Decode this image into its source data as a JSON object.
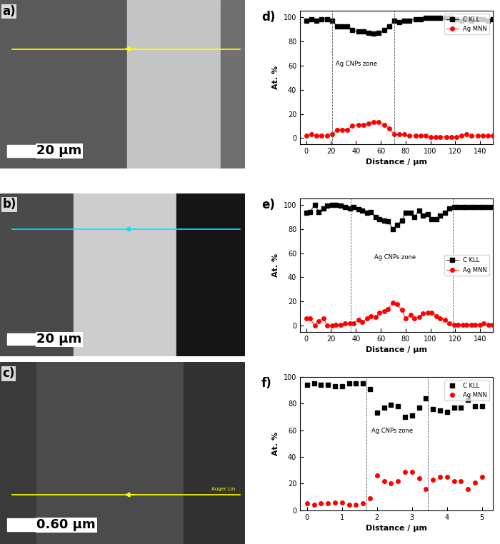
{
  "images": [
    {
      "label": "a)",
      "scale_bar": "20 µm",
      "line_color": "#ffff00",
      "line_text": null
    },
    {
      "label": "b)",
      "scale_bar": "20 µm",
      "line_color": "#00e5ff",
      "line_text": null
    },
    {
      "label": "c)",
      "scale_bar": "0.60 µm",
      "line_color": "#ffff00",
      "line_text": "Auger Lin"
    }
  ],
  "chart_data": [
    {
      "type": "scatter",
      "panel_label": "d)",
      "xlabel": "Distance / µm",
      "ylabel": "At. %",
      "xlim": [
        -5,
        150
      ],
      "xticks": [
        0,
        20,
        40,
        60,
        80,
        100,
        120,
        140
      ],
      "ylim": [
        -5,
        105
      ],
      "yticks": [
        0,
        20,
        40,
        60,
        80,
        100
      ],
      "legend": "upper right",
      "zone_bounds": [
        21,
        71
      ],
      "annotations": [
        {
          "text": "Ag CNPs zone",
          "x": 24,
          "y": 60
        }
      ],
      "x": [
        0,
        4,
        8,
        12,
        17,
        21,
        25,
        29,
        33,
        37,
        42,
        46,
        50,
        54,
        58,
        63,
        67,
        71,
        75,
        79,
        83,
        88,
        92,
        96,
        100,
        104,
        108,
        113,
        117,
        121,
        125,
        129,
        133,
        138,
        142,
        146,
        150
      ],
      "series": [
        {
          "name": "C KLL",
          "color": "#000000",
          "marker": "square",
          "line_style": "solid",
          "values": [
            97,
            98,
            97,
            98,
            98,
            97,
            92,
            92,
            92,
            89,
            88,
            88,
            87,
            86,
            87,
            89,
            92,
            97,
            96,
            97,
            97,
            98,
            98,
            99,
            99,
            99,
            99,
            99,
            99,
            98,
            97,
            98,
            97,
            98,
            98,
            97,
            98
          ]
        },
        {
          "name": "Ag MNN",
          "color": "#ff0000",
          "marker": "circle",
          "line_style": "solid",
          "values": [
            2,
            3,
            2,
            2,
            2,
            3,
            7,
            7,
            7,
            10,
            11,
            11,
            12,
            13,
            13,
            11,
            8,
            3,
            3,
            3,
            2,
            2,
            2,
            2,
            1,
            1,
            1,
            1,
            1,
            1,
            2,
            3,
            2,
            2,
            2,
            2,
            2
          ]
        }
      ]
    },
    {
      "type": "scatter",
      "panel_label": "e)",
      "xlabel": "Distance / µm",
      "ylabel": "At. %",
      "xlim": [
        -5,
        150
      ],
      "xticks": [
        0,
        20,
        40,
        60,
        80,
        100,
        120,
        140
      ],
      "ylim": [
        -5,
        105
      ],
      "yticks": [
        0,
        20,
        40,
        60,
        80,
        100
      ],
      "legend": "center right",
      "zone_bounds": [
        36,
        118
      ],
      "annotations": [
        {
          "text": "Ag CNPs zone",
          "x": 55,
          "y": 55
        }
      ],
      "x": [
        0,
        3,
        7,
        10,
        14,
        17,
        21,
        24,
        28,
        31,
        35,
        38,
        42,
        45,
        49,
        52,
        56,
        59,
        63,
        66,
        70,
        73,
        77,
        80,
        84,
        87,
        91,
        94,
        98,
        101,
        105,
        108,
        112,
        115,
        119,
        122,
        126,
        129,
        133,
        136,
        140,
        143,
        147,
        150
      ],
      "series": [
        {
          "name": "C KLL",
          "color": "#000000",
          "marker": "square",
          "line_style": "solid",
          "values": [
            93,
            94,
            100,
            94,
            97,
            99,
            100,
            100,
            99,
            98,
            97,
            98,
            96,
            95,
            93,
            94,
            90,
            88,
            87,
            86,
            80,
            83,
            87,
            93,
            93,
            90,
            95,
            91,
            92,
            88,
            88,
            91,
            93,
            97,
            98,
            98,
            98,
            98,
            98,
            98,
            98,
            98,
            98,
            98
          ]
        },
        {
          "name": "Ag MNN",
          "color": "#ff0000",
          "marker": "circle",
          "line_style": "solid",
          "values": [
            6,
            6,
            0,
            4,
            6,
            0,
            0,
            1,
            1,
            2,
            2,
            2,
            5,
            3,
            6,
            8,
            7,
            11,
            12,
            14,
            19,
            18,
            13,
            6,
            9,
            6,
            7,
            10,
            11,
            11,
            8,
            6,
            5,
            2,
            1,
            1,
            1,
            1,
            1,
            1,
            1,
            2,
            1,
            1
          ]
        }
      ]
    },
    {
      "type": "scatter",
      "panel_label": "f)",
      "xlabel": "Distance / µm",
      "ylabel": "At. %",
      "xlim": [
        -0.2,
        5.3
      ],
      "xticks": [
        0,
        1,
        2,
        3,
        4,
        5
      ],
      "ylim": [
        0,
        100
      ],
      "yticks": [
        0,
        20,
        40,
        60,
        80,
        100
      ],
      "legend": "upper right",
      "zone_bounds": [
        1.7,
        3.45
      ],
      "annotations": [
        {
          "text": "Ag CNPs zone",
          "x": 1.85,
          "y": 58
        }
      ],
      "x": [
        0,
        0.2,
        0.4,
        0.6,
        0.8,
        1.0,
        1.2,
        1.4,
        1.6,
        1.8,
        2.0,
        2.2,
        2.4,
        2.6,
        2.8,
        3.0,
        3.2,
        3.4,
        3.6,
        3.8,
        4.0,
        4.2,
        4.4,
        4.6,
        4.8,
        5.0
      ],
      "series": [
        {
          "name": "C KLL",
          "color": "#000000",
          "marker": "square",
          "line_style": "none",
          "values": [
            94,
            95,
            94,
            94,
            93,
            93,
            95,
            95,
            95,
            91,
            73,
            77,
            79,
            78,
            70,
            71,
            77,
            84,
            76,
            75,
            74,
            77,
            77,
            83,
            78,
            78
          ]
        },
        {
          "name": "Ag MNN",
          "color": "#ff0000",
          "marker": "circle",
          "line_style": "none",
          "values": [
            5,
            4,
            5,
            5,
            6,
            6,
            4,
            4,
            5,
            9,
            26,
            22,
            20,
            22,
            29,
            29,
            24,
            16,
            23,
            25,
            25,
            22,
            22,
            16,
            21,
            25
          ]
        }
      ]
    }
  ]
}
